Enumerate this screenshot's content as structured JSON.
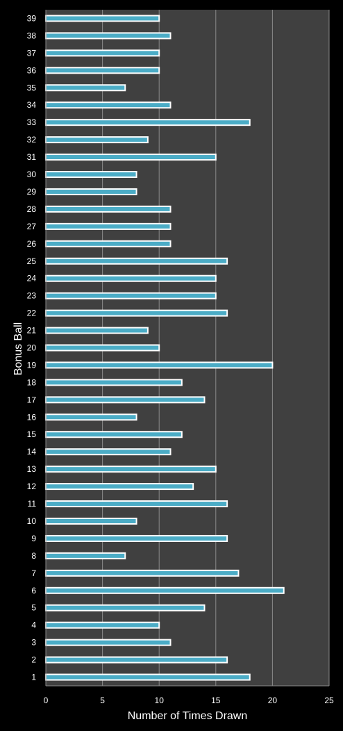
{
  "chart_data": {
    "type": "bar",
    "orientation": "horizontal",
    "xlabel": "Number of Times Drawn",
    "ylabel": "Bonus Ball",
    "xlim": [
      0,
      25
    ],
    "xticks": [
      0,
      5,
      10,
      15,
      20,
      25
    ],
    "grid": true,
    "categories": [
      "1",
      "2",
      "3",
      "4",
      "5",
      "6",
      "7",
      "8",
      "9",
      "10",
      "11",
      "12",
      "13",
      "14",
      "15",
      "16",
      "17",
      "18",
      "19",
      "20",
      "21",
      "22",
      "23",
      "24",
      "25",
      "26",
      "27",
      "28",
      "29",
      "30",
      "31",
      "32",
      "33",
      "34",
      "35",
      "36",
      "37",
      "38",
      "39"
    ],
    "values": [
      18,
      16,
      11,
      10,
      14,
      21,
      17,
      7,
      16,
      8,
      16,
      13,
      15,
      11,
      12,
      8,
      14,
      12,
      20,
      10,
      9,
      16,
      15,
      15,
      16,
      11,
      11,
      11,
      8,
      8,
      15,
      9,
      18,
      11,
      7,
      10,
      10,
      11,
      10
    ],
    "colors": {
      "background": "#000000",
      "plot_area": "#404040",
      "gridline": "#8a8a8a",
      "bar_fill": "#4bacc6",
      "bar_border": "#ffffff",
      "text": "#ffffff"
    }
  }
}
